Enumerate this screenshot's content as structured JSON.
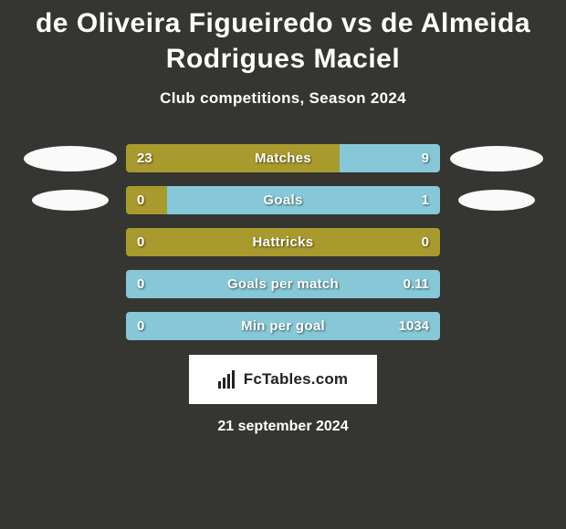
{
  "title": "de Oliveira Figueiredo vs de Almeida Rodrigues Maciel",
  "subtitle": "Club competitions, Season 2024",
  "date": "21 september 2024",
  "logo_text": "FcTables.com",
  "colors": {
    "background": "#353531",
    "left_bar": "#a99a2e",
    "right_bar": "#86c8d7",
    "text": "#ffffff",
    "ellipse": "#fafafa",
    "logo_bg": "#ffffff",
    "logo_text": "#222222"
  },
  "rows": [
    {
      "label": "Matches",
      "left_value": "23",
      "right_value": "9",
      "left_pct": 68,
      "right_pct": 32,
      "show_ellipse": "big"
    },
    {
      "label": "Goals",
      "left_value": "0",
      "right_value": "1",
      "left_pct": 13,
      "right_pct": 87,
      "show_ellipse": "small"
    },
    {
      "label": "Hattricks",
      "left_value": "0",
      "right_value": "0",
      "left_pct": 100,
      "right_pct": 0,
      "show_ellipse": "none"
    },
    {
      "label": "Goals per match",
      "left_value": "0",
      "right_value": "0.11",
      "left_pct": 0,
      "right_pct": 100,
      "show_ellipse": "none"
    },
    {
      "label": "Min per goal",
      "left_value": "0",
      "right_value": "1034",
      "left_pct": 0,
      "right_pct": 100,
      "show_ellipse": "none"
    }
  ]
}
